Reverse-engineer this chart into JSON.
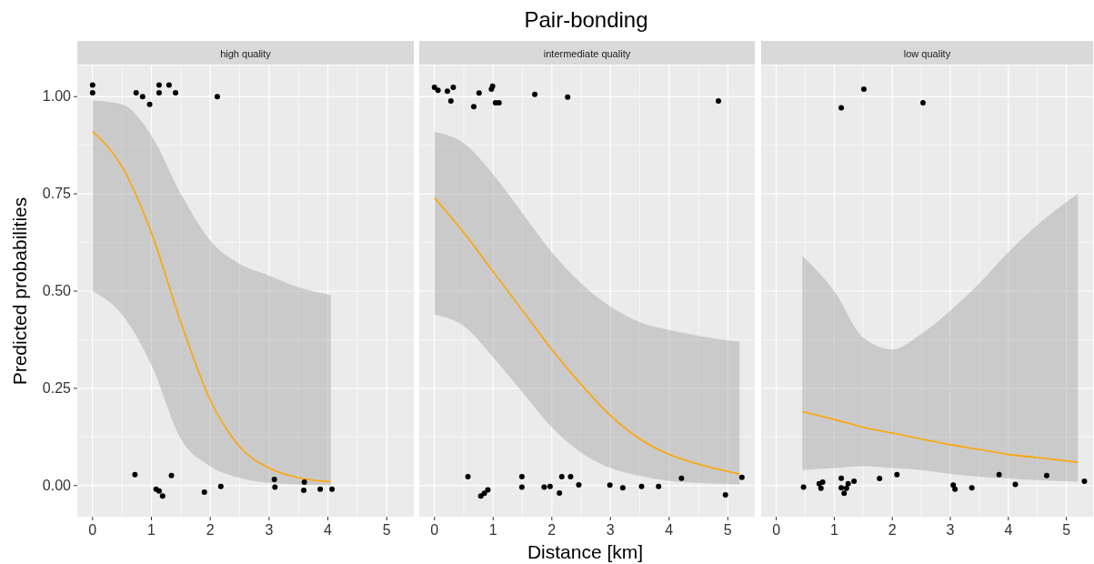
{
  "chart_data": [
    {
      "type": "line",
      "subtitle": "high quality",
      "ylabel": "Predicted probabilities",
      "xlim": [
        -0.26,
        5.46
      ],
      "xticks": [
        0,
        1,
        2,
        3,
        4,
        5
      ],
      "ylim": [
        -0.08,
        1.08
      ],
      "yticks": [
        {
          "value": 0,
          "label": "0.00"
        },
        {
          "value": 0.25,
          "label": "0.25"
        },
        {
          "value": 0.5,
          "label": "0.50"
        },
        {
          "value": 0.75,
          "label": "0.75"
        },
        {
          "value": 1,
          "label": "1.00"
        }
      ],
      "grid": true,
      "series": [
        {
          "marker": "none",
          "color": "#ffa500",
          "x": [
            0,
            0.5,
            1,
            1.5,
            2,
            2.5,
            3,
            3.5,
            4.05
          ],
          "values": [
            0.91,
            0.82,
            0.65,
            0.42,
            0.22,
            0.1,
            0.045,
            0.02,
            0.01
          ],
          "lower": [
            0.5,
            0.44,
            0.31,
            0.12,
            0.05,
            0.02,
            0.007,
            0.003,
            0.001
          ],
          "upper": [
            0.99,
            0.98,
            0.9,
            0.75,
            0.63,
            0.57,
            0.54,
            0.51,
            0.49
          ]
        },
        {
          "type": "scatter",
          "marker": "circle",
          "color": "#000000",
          "x": [
            0,
            0,
            0.74,
            0.85,
            0.97,
            1.13,
            1.13,
            1.3,
            1.41,
            2.12,
            0.72,
            1.34,
            1.08,
            1.13,
            1.19,
            1.9,
            2.18,
            3.09,
            3.1,
            3.6,
            3.59,
            3.87,
            4.07
          ],
          "values": [
            1.03,
            1.01,
            1.01,
            1.0,
            0.98,
            1.03,
            1.01,
            1.03,
            1.01,
            1.0,
            0.028,
            0.026,
            -0.009,
            -0.014,
            -0.027,
            -0.017,
            -0.002,
            0.016,
            -0.004,
            0.009,
            -0.012,
            -0.009,
            -0.009
          ]
        }
      ]
    },
    {
      "type": "line",
      "title": "Pair-bonding",
      "subtitle": "intermediate quality",
      "xlabel": "Distance [km]",
      "xlim": [
        -0.26,
        5.46
      ],
      "xticks": [
        0,
        1,
        2,
        3,
        4,
        5
      ],
      "ylim": [
        -0.08,
        1.08
      ],
      "yticks": [
        {
          "value": 0,
          "label": null
        },
        {
          "value": 0.25,
          "label": null
        },
        {
          "value": 0.5,
          "label": null
        },
        {
          "value": 0.75,
          "label": null
        },
        {
          "value": 1,
          "label": null
        }
      ],
      "tick_labels": "x",
      "grid": true,
      "series": [
        {
          "marker": "none",
          "color": "#ffa500",
          "x": [
            0,
            0.5,
            1,
            1.5,
            2,
            2.5,
            3,
            3.5,
            4,
            4.5,
            5.2
          ],
          "values": [
            0.74,
            0.65,
            0.55,
            0.45,
            0.35,
            0.26,
            0.18,
            0.12,
            0.08,
            0.055,
            0.03
          ],
          "lower": [
            0.44,
            0.41,
            0.33,
            0.24,
            0.15,
            0.085,
            0.045,
            0.025,
            0.012,
            0.007,
            0.003
          ],
          "upper": [
            0.91,
            0.88,
            0.8,
            0.7,
            0.6,
            0.52,
            0.46,
            0.42,
            0.4,
            0.385,
            0.37
          ]
        },
        {
          "type": "scatter",
          "marker": "circle",
          "color": "#000000",
          "x": [
            0,
            0.06,
            0.22,
            0.32,
            0.28,
            0.67,
            0.76,
            0.99,
            0.97,
            1.04,
            1.1,
            1.71,
            2.27,
            4.84,
            0.57,
            0.79,
            0.85,
            0.91,
            1.49,
            1.49,
            1.87,
            1.97,
            2.13,
            2.17,
            2.32,
            2.46,
            2.99,
            3.21,
            3.53,
            3.82,
            4.21,
            4.96,
            5.24
          ],
          "values": [
            1.024,
            1.016,
            1.014,
            1.024,
            0.989,
            0.974,
            1.009,
            1.027,
            1.019,
            0.984,
            0.984,
            1.006,
            0.999,
            0.989,
            0.023,
            -0.027,
            -0.02,
            -0.011,
            0.023,
            -0.004,
            -0.004,
            -0.002,
            -0.019,
            0.023,
            0.023,
            0.002,
            0.001,
            -0.006,
            -0.002,
            -0.002,
            0.019,
            -0.024,
            0.021
          ]
        }
      ]
    },
    {
      "type": "line",
      "subtitle": "low quality",
      "xlim": [
        -0.26,
        5.46
      ],
      "xticks": [
        0,
        1,
        2,
        3,
        4,
        5
      ],
      "ylim": [
        -0.08,
        1.08
      ],
      "yticks": [
        {
          "value": 0,
          "label": null
        },
        {
          "value": 0.25,
          "label": null
        },
        {
          "value": 0.5,
          "label": null
        },
        {
          "value": 0.75,
          "label": null
        },
        {
          "value": 1,
          "label": null
        }
      ],
      "tick_labels": "x",
      "grid": true,
      "series": [
        {
          "marker": "none",
          "color": "#ffa500",
          "x": [
            0.45,
            1,
            1.5,
            2,
            2.5,
            3,
            3.5,
            4,
            4.5,
            5.2
          ],
          "values": [
            0.19,
            0.17,
            0.15,
            0.135,
            0.12,
            0.105,
            0.093,
            0.08,
            0.072,
            0.06
          ],
          "lower": [
            0.04,
            0.045,
            0.05,
            0.045,
            0.04,
            0.03,
            0.023,
            0.018,
            0.014,
            0.01
          ],
          "upper": [
            0.59,
            0.5,
            0.38,
            0.35,
            0.39,
            0.45,
            0.52,
            0.6,
            0.67,
            0.75
          ]
        },
        {
          "type": "scatter",
          "marker": "circle",
          "color": "#000000",
          "x": [
            1.51,
            1.12,
            2.53,
            0.47,
            0.74,
            0.8,
            0.77,
            1.12,
            1.12,
            1.17,
            1.21,
            1.24,
            1.34,
            1.78,
            2.08,
            3.05,
            3.08,
            3.37,
            3.84,
            4.12,
            4.66,
            5.31
          ],
          "values": [
            1.019,
            0.971,
            0.984,
            -0.004,
            0.005,
            0.009,
            -0.007,
            0.019,
            -0.006,
            -0.02,
            -0.007,
            0.005,
            0.011,
            0.018,
            0.028,
            0.001,
            -0.009,
            -0.006,
            0.028,
            0.003,
            0.026,
            0.011
          ]
        }
      ]
    }
  ]
}
